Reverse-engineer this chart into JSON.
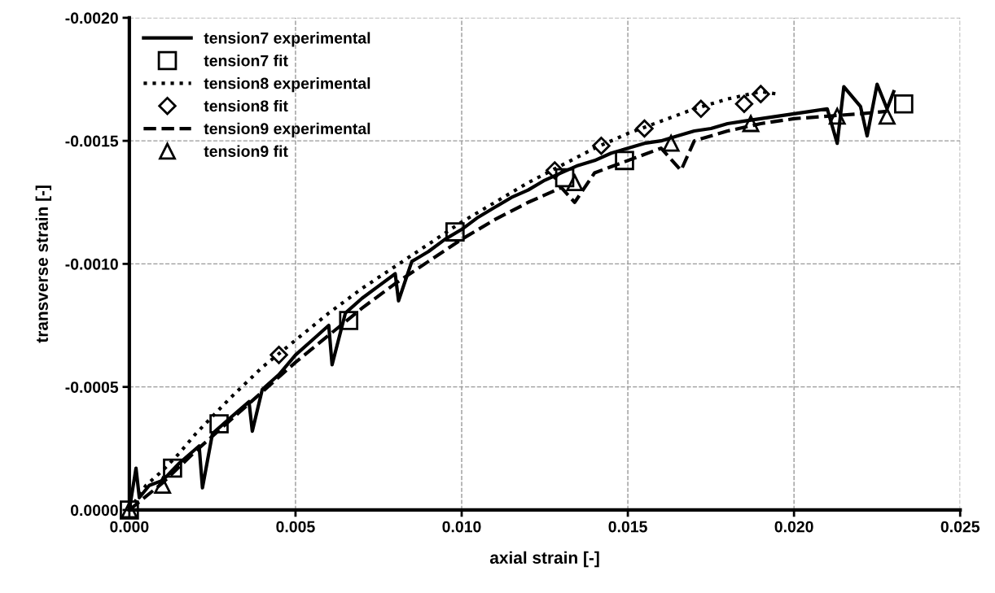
{
  "chart_data": {
    "type": "line",
    "xlabel": "axial strain [-]",
    "ylabel": "transverse strain [-]",
    "xlim": [
      0,
      0.025
    ],
    "ylim": [
      0,
      -0.002
    ],
    "xticks": [
      {
        "value": 0,
        "label": "0.000"
      },
      {
        "value": 0.005,
        "label": "0.005"
      },
      {
        "value": 0.01,
        "label": "0.010"
      },
      {
        "value": 0.015,
        "label": "0.015"
      },
      {
        "value": 0.02,
        "label": "0.020"
      },
      {
        "value": 0.025,
        "label": "0.025"
      }
    ],
    "yticks": [
      {
        "value": 0,
        "label": "0.0000"
      },
      {
        "value": -0.0005,
        "label": "-0.0005"
      },
      {
        "value": -0.001,
        "label": "-0.0010"
      },
      {
        "value": -0.0015,
        "label": "-0.0015"
      },
      {
        "value": -0.002,
        "label": "-0.0020"
      }
    ],
    "grid": true,
    "legend": "top left",
    "series": [
      {
        "name": "tension7 experimental",
        "line_style": "solid",
        "color": "#000000",
        "x": [
          0,
          0.0002,
          0.0003,
          0.0006,
          0.001,
          0.0015,
          0.0021,
          0.0022,
          0.0025,
          0.003,
          0.0036,
          0.0037,
          0.004,
          0.0045,
          0.005,
          0.0055,
          0.006,
          0.0061,
          0.0065,
          0.007,
          0.0075,
          0.008,
          0.0081,
          0.0085,
          0.009,
          0.0095,
          0.01,
          0.0105,
          0.011,
          0.0115,
          0.012,
          0.0125,
          0.013,
          0.0135,
          0.014,
          0.0145,
          0.015,
          0.0155,
          0.016,
          0.0165,
          0.017,
          0.0175,
          0.018,
          0.0185,
          0.019,
          0.0195,
          0.02,
          0.0205,
          0.021,
          0.0213,
          0.0215,
          0.022,
          0.0222,
          0.0225,
          0.0228,
          0.023
        ],
        "values": [
          0,
          -0.00017,
          -5e-05,
          -0.0001,
          -0.00012,
          -0.00019,
          -0.00026,
          -9e-05,
          -0.00031,
          -0.00037,
          -0.00044,
          -0.00032,
          -0.00049,
          -0.00055,
          -0.00063,
          -0.00069,
          -0.00075,
          -0.00059,
          -0.0008,
          -0.00086,
          -0.00091,
          -0.00096,
          -0.00085,
          -0.00101,
          -0.00105,
          -0.0011,
          -0.00114,
          -0.00119,
          -0.00123,
          -0.00127,
          -0.0013,
          -0.00134,
          -0.00137,
          -0.0014,
          -0.00142,
          -0.00145,
          -0.00147,
          -0.00149,
          -0.0015,
          -0.00152,
          -0.00154,
          -0.00155,
          -0.00157,
          -0.00158,
          -0.00159,
          -0.0016,
          -0.00161,
          -0.00162,
          -0.00163,
          -0.00149,
          -0.00172,
          -0.00164,
          -0.00152,
          -0.00173,
          -0.00163,
          -0.0017
        ]
      },
      {
        "name": "tension7 fit",
        "type": "scatter",
        "marker": "square",
        "color": "#000000",
        "x": [
          0,
          0.0013,
          0.0027,
          0.0066,
          0.0098,
          0.0131,
          0.0149,
          0.0233
        ],
        "values": [
          0,
          -0.00017,
          -0.00035,
          -0.00077,
          -0.00113,
          -0.00135,
          -0.00142,
          -0.00165
        ]
      },
      {
        "name": "tension8 experimental",
        "line_style": "dotted",
        "color": "#000000",
        "x": [
          0,
          0.0005,
          0.001,
          0.0015,
          0.002,
          0.003,
          0.004,
          0.005,
          0.006,
          0.007,
          0.008,
          0.009,
          0.01,
          0.011,
          0.012,
          0.013,
          0.014,
          0.015,
          0.016,
          0.017,
          0.018,
          0.019,
          0.0195
        ],
        "values": [
          0,
          -0.0001,
          -0.00016,
          -0.00023,
          -0.00031,
          -0.00045,
          -0.00058,
          -0.00069,
          -0.0008,
          -0.0009,
          -0.00099,
          -0.00108,
          -0.00117,
          -0.00125,
          -0.00133,
          -0.0014,
          -0.00147,
          -0.00153,
          -0.00158,
          -0.00163,
          -0.00167,
          -0.0017,
          -0.00169
        ]
      },
      {
        "name": "tension8 fit",
        "type": "scatter",
        "marker": "diamond",
        "color": "#000000",
        "x": [
          0.0045,
          0.0128,
          0.0142,
          0.0155,
          0.0172,
          0.0185,
          0.019
        ],
        "values": [
          -0.00063,
          -0.00138,
          -0.00148,
          -0.00155,
          -0.00163,
          -0.00165,
          -0.00169
        ]
      },
      {
        "name": "tension9 experimental",
        "line_style": "dashed",
        "color": "#000000",
        "x": [
          0,
          0.001,
          0.002,
          0.003,
          0.004,
          0.005,
          0.006,
          0.007,
          0.008,
          0.009,
          0.01,
          0.011,
          0.012,
          0.013,
          0.0134,
          0.014,
          0.015,
          0.016,
          0.0166,
          0.017,
          0.018,
          0.019,
          0.02,
          0.021,
          0.022,
          0.0228
        ],
        "values": [
          0,
          -0.00011,
          -0.00024,
          -0.00036,
          -0.00048,
          -0.0006,
          -0.00071,
          -0.00082,
          -0.00092,
          -0.00101,
          -0.0011,
          -0.00118,
          -0.00125,
          -0.00131,
          -0.00125,
          -0.00137,
          -0.00142,
          -0.00147,
          -0.00138,
          -0.0015,
          -0.00154,
          -0.00157,
          -0.00159,
          -0.0016,
          -0.00161,
          -0.00162
        ]
      },
      {
        "name": "tension9 fit",
        "type": "scatter",
        "marker": "triangle",
        "color": "#000000",
        "x": [
          0,
          0.001,
          0.0134,
          0.0163,
          0.0187,
          0.0213,
          0.0228
        ],
        "values": [
          0,
          -0.0001,
          -0.00133,
          -0.00149,
          -0.00157,
          -0.0016,
          -0.0016
        ]
      }
    ]
  }
}
